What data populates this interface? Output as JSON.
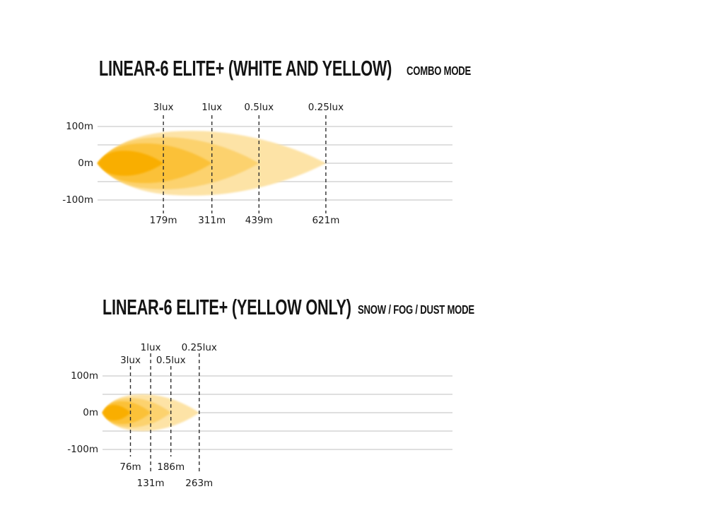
{
  "colors": {
    "background": "#ffffff",
    "grid_line": "#cccccc",
    "lux_dash_line": "#2e2e2e",
    "axis_text": "#1a1a1a",
    "title_text": "#141414"
  },
  "chart_data": [
    {
      "type": "area",
      "title": "LINEAR-6 ELITE+ (WHITE AND YELLOW)",
      "subtitle": "COMBO MODE",
      "unit": "m",
      "grid": "horizontal",
      "legend": "none",
      "y_axis": {
        "tick_labels": [
          "100m",
          "0m",
          "-100m"
        ],
        "tick_values_m": [
          100,
          0,
          -100
        ],
        "gridline_values_m": [
          100,
          50,
          0,
          -50,
          -100
        ],
        "range_m": [
          -100,
          100
        ]
      },
      "series": [
        {
          "lux_label": "3lux",
          "lux": 3,
          "distance_m": 179,
          "distance_label": "179m",
          "beam_half_spread_m": 34,
          "color": "#F9AE05",
          "top_label_row": 0,
          "bottom_label_row": 0
        },
        {
          "lux_label": "1lux",
          "lux": 1,
          "distance_m": 311,
          "distance_label": "311m",
          "beam_half_spread_m": 54,
          "color": "#FBC138",
          "top_label_row": 0,
          "bottom_label_row": 0
        },
        {
          "lux_label": "0.5lux",
          "lux": 0.5,
          "distance_m": 439,
          "distance_label": "439m",
          "beam_half_spread_m": 71,
          "color": "#FCD26E",
          "top_label_row": 0,
          "bottom_label_row": 0
        },
        {
          "lux_label": "0.25lux",
          "lux": 0.25,
          "distance_m": 621,
          "distance_label": "621m",
          "beam_half_spread_m": 88,
          "color": "#FDE3A6",
          "top_label_row": 0,
          "bottom_label_row": 0
        }
      ]
    },
    {
      "type": "area",
      "title": "LINEAR-6 ELITE+ (YELLOW ONLY)",
      "subtitle": "SNOW / FOG / DUST MODE",
      "unit": "m",
      "grid": "horizontal",
      "legend": "none",
      "y_axis": {
        "tick_labels": [
          "100m",
          "0m",
          "-100m"
        ],
        "tick_values_m": [
          100,
          0,
          -100
        ],
        "gridline_values_m": [
          100,
          50,
          0,
          -50,
          -100
        ],
        "range_m": [
          -100,
          100
        ]
      },
      "series": [
        {
          "lux_label": "3lux",
          "lux": 3,
          "distance_m": 76,
          "distance_label": "76m",
          "beam_half_spread_m": 21,
          "color": "#F9AE05",
          "top_label_row": 1,
          "bottom_label_row": 0
        },
        {
          "lux_label": "1lux",
          "lux": 1,
          "distance_m": 131,
          "distance_label": "131m",
          "beam_half_spread_m": 31,
          "color": "#FBC138",
          "top_label_row": 0,
          "bottom_label_row": 1
        },
        {
          "lux_label": "0.5lux",
          "lux": 0.5,
          "distance_m": 186,
          "distance_label": "186m",
          "beam_half_spread_m": 40,
          "color": "#FCD26E",
          "top_label_row": 1,
          "bottom_label_row": 0
        },
        {
          "lux_label": "0.25lux",
          "lux": 0.25,
          "distance_m": 263,
          "distance_label": "263m",
          "beam_half_spread_m": 50,
          "color": "#FDE3A6",
          "top_label_row": 0,
          "bottom_label_row": 1
        }
      ]
    }
  ]
}
